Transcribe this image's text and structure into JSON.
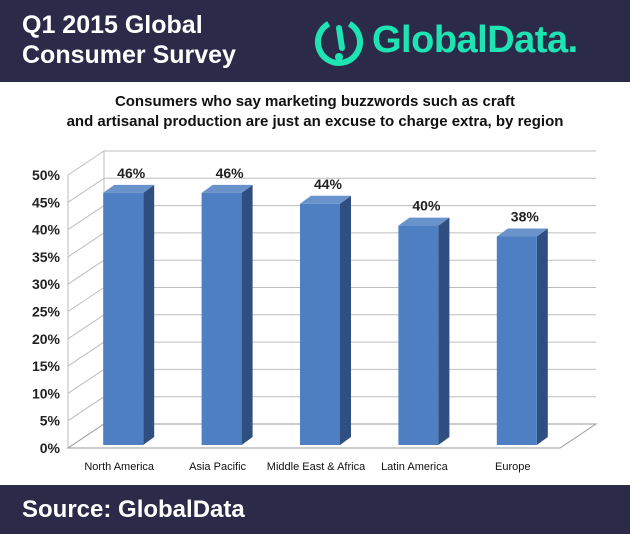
{
  "header": {
    "title_line1": "Q1 2015 Global",
    "title_line2": "Consumer Survey",
    "logo_text": "GlobalData.",
    "background_color": "#2b2a48",
    "logo_color": "#1ee3b3"
  },
  "subtitle_line1": "Consumers who say marketing buzzwords such as craft",
  "subtitle_line2": "and artisanal production are just an excuse to charge extra, by region",
  "footer": {
    "source": "Source: GlobalData"
  },
  "chart_data": {
    "type": "bar",
    "style": "3d",
    "categories": [
      "North America",
      "Asia Pacific",
      "Middle East & Africa",
      "Latin America",
      "Europe"
    ],
    "values": [
      46,
      46,
      44,
      40,
      38
    ],
    "value_labels": [
      "46%",
      "46%",
      "44%",
      "40%",
      "38%"
    ],
    "ylim": [
      0,
      50
    ],
    "yticks": [
      "0%",
      "5%",
      "10%",
      "15%",
      "20%",
      "25%",
      "30%",
      "35%",
      "40%",
      "45%",
      "50%"
    ],
    "grid": true,
    "bar_color": "#4e7fc2",
    "bar_side_color": "#2f4f80",
    "bar_top_color": "#6a93cc"
  }
}
